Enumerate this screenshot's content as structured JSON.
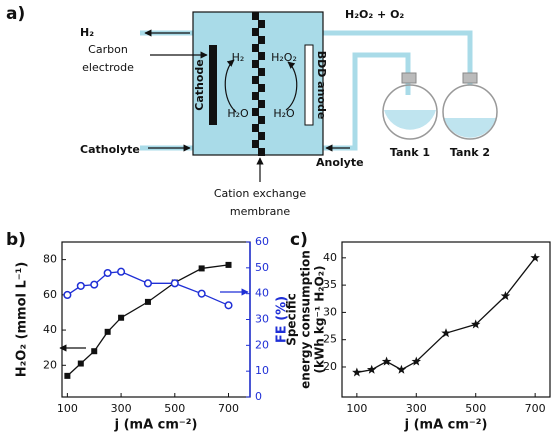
{
  "diagram": {
    "panel_label": "a)",
    "h2_out": "H₂",
    "carbon_electrode": [
      "Carbon",
      "electrode"
    ],
    "cathode": "Cathode",
    "anode": "BDD anode",
    "inner_left_top": "H₂",
    "inner_left_bottom": "H₂O",
    "inner_right_top": "H₂O₂",
    "inner_right_bottom": "H₂O",
    "product_out": "H₂O₂ + O₂",
    "catholyte": "Catholyte",
    "anolyte": "Anolyte",
    "tank1": "Tank 1",
    "tank2": "Tank 2",
    "membrane": [
      "Cation exchange",
      "membrane"
    ]
  },
  "chart_data": [
    {
      "type": "line",
      "panel_label": "b)",
      "xlabel": "j (mA cm⁻²)",
      "ylabel": "H₂O₂ (mmol L⁻¹)",
      "y2label": "FE (%)",
      "x": [
        100,
        150,
        200,
        250,
        300,
        400,
        500,
        600,
        700
      ],
      "series": [
        {
          "color": "#111111",
          "marker": "square",
          "values": [
            14,
            21,
            28,
            39,
            47,
            56,
            67,
            75,
            77
          ]
        },
        {
          "color": "#1f2fd6",
          "marker": "circle",
          "axis": "y2",
          "values": [
            39.5,
            43,
            43.5,
            48,
            48.5,
            44,
            44,
            40,
            35.5
          ]
        }
      ],
      "xlim": [
        80,
        780
      ],
      "xticks": [
        100,
        300,
        500,
        700
      ],
      "ylim": [
        2,
        90
      ],
      "yticks": [
        20,
        40,
        60,
        80
      ],
      "y2lim": [
        0,
        60
      ],
      "y2ticks": [
        0,
        10,
        20,
        30,
        40,
        50,
        60
      ],
      "y2color": "#1f2fd6"
    },
    {
      "type": "line",
      "panel_label": "c)",
      "xlabel": "j (mA cm⁻²)",
      "ylabel": [
        "Specific",
        "energy consumption",
        "(kWh kg⁻¹ H₂O₂)"
      ],
      "x": [
        100,
        150,
        200,
        250,
        300,
        400,
        500,
        600,
        700
      ],
      "series": [
        {
          "color": "#111111",
          "marker": "star",
          "values": [
            19,
            19.5,
            21,
            19.5,
            21,
            26.2,
            27.8,
            33,
            40
          ]
        }
      ],
      "xlim": [
        50,
        750
      ],
      "xticks": [
        100,
        300,
        500,
        700
      ],
      "ylim": [
        14.5,
        42.9
      ],
      "yticks": [
        20,
        25,
        30,
        35,
        40
      ]
    }
  ]
}
